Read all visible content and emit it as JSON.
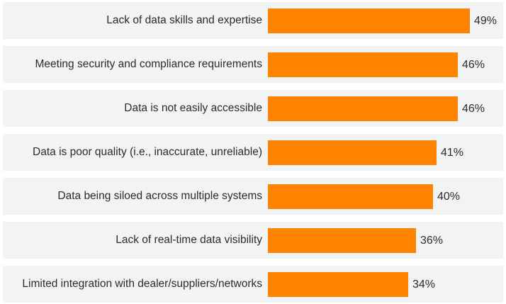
{
  "chart_data": {
    "type": "bar",
    "orientation": "horizontal",
    "categories": [
      "Lack of data skills and expertise",
      "Meeting security and compliance requirements",
      "Data is not easily accessible",
      "Data is poor quality (i.e., inaccurate, unreliable)",
      "Data being siloed across multiple systems",
      "Lack of real-time data visibility",
      "Limited integration with dealer/suppliers/networks"
    ],
    "values": [
      49,
      46,
      46,
      41,
      40,
      36,
      34
    ],
    "value_labels": [
      "49%",
      "46%",
      "46%",
      "41%",
      "40%",
      "36%",
      "34%"
    ],
    "unit": "%",
    "title": "",
    "xlabel": "",
    "ylabel": "",
    "xlim": [
      0,
      49
    ],
    "bar_color": "#ff8200",
    "row_background_color": "#f2f4f4",
    "grid": false,
    "legend": false
  }
}
